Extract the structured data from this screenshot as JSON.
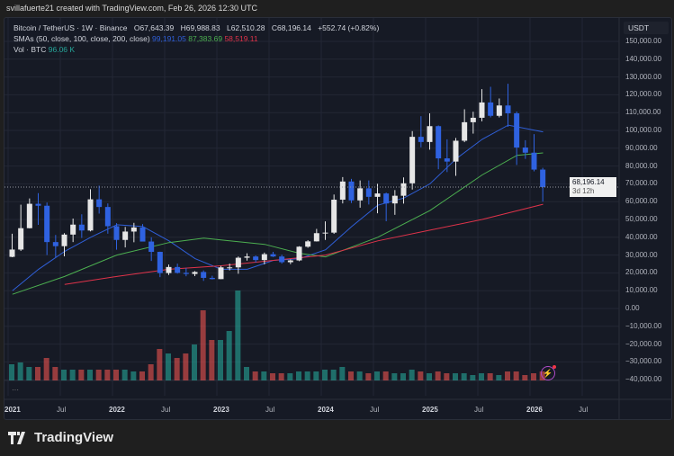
{
  "header": {
    "credit": "svillafuerte21 created with TradingView.com, Feb 26, 2026 12:30 UTC"
  },
  "legend": {
    "symbol": "Bitcoin / TetherUS · 1W · Binance",
    "open": "O67,643.39",
    "high": "H69,988.83",
    "low": "L62,510.28",
    "close": "C68,196.14",
    "change": "+552.74 (+0.82%)",
    "sma_label": "SMAs (50, close, 100, close, 200, close)",
    "sma50": "99,191.05",
    "sma100": "87,383.69",
    "sma200": "58,519.11",
    "vol_label": "Vol · BTC",
    "vol_value": "96.06 K"
  },
  "price_label": {
    "price": "68,196.14",
    "countdown": "3d 12h"
  },
  "pane_menu": "···",
  "footer": {
    "brand": "TradingView"
  },
  "colors": {
    "up": "#e6e6e6",
    "down": "#2f62e0",
    "sma50": "#2f5fd8",
    "sma100": "#4caf50",
    "sma200": "#e0334a",
    "vol_up": "#26a69a",
    "vol_down": "#ef5350",
    "background": "#161a25"
  },
  "icons": {
    "alert": "lightning-icon",
    "logo": "tradingview-logo"
  },
  "chart_data": {
    "type": "candlestick",
    "title": "Bitcoin / TetherUS · 1W · Binance",
    "unit": "USDT",
    "ylim": [
      -40000,
      150000
    ],
    "yticks": [
      "150,000.00",
      "140,000.00",
      "130,000.00",
      "120,000.00",
      "110,000.00",
      "100,000.00",
      "90,000.00",
      "80,000.00",
      "70,000.00",
      "60,000.00",
      "50,000.00",
      "40,000.00",
      "30,000.00",
      "20,000.00",
      "10,000.00",
      "0.00",
      "−10,000.00",
      "−20,000.00",
      "−30,000.00",
      "−40,000.00"
    ],
    "xticks": [
      {
        "label": "2021",
        "date": "2021-01",
        "year": true
      },
      {
        "label": "Jul",
        "date": "2021-07"
      },
      {
        "label": "2022",
        "date": "2022-01",
        "year": true
      },
      {
        "label": "Jul",
        "date": "2022-07"
      },
      {
        "label": "2023",
        "date": "2023-01",
        "year": true
      },
      {
        "label": "Jul",
        "date": "2023-07"
      },
      {
        "label": "2024",
        "date": "2024-01",
        "year": true
      },
      {
        "label": "Jul",
        "date": "2024-07"
      },
      {
        "label": "2025",
        "date": "2025-01",
        "year": true
      },
      {
        "label": "Jul",
        "date": "2025-07"
      },
      {
        "label": "2026",
        "date": "2026-01",
        "year": true
      },
      {
        "label": "Jul",
        "date": "2026-07"
      }
    ],
    "grid": true,
    "start": "2021-01",
    "ohlc_monthly_approx": [
      [
        29000,
        42000,
        28800,
        33100
      ],
      [
        33100,
        58300,
        32300,
        45100
      ],
      [
        45100,
        61800,
        45000,
        58800
      ],
      [
        58800,
        64800,
        47000,
        57700
      ],
      [
        57700,
        59500,
        30000,
        37300
      ],
      [
        37300,
        41300,
        28800,
        35000
      ],
      [
        35000,
        42300,
        29300,
        41500
      ],
      [
        41500,
        50500,
        37300,
        47100
      ],
      [
        47100,
        52900,
        39600,
        43800
      ],
      [
        43800,
        67000,
        43300,
        61300
      ],
      [
        61300,
        69000,
        53300,
        57000
      ],
      [
        57000,
        59000,
        42000,
        46200
      ],
      [
        46200,
        47900,
        33000,
        38500
      ],
      [
        38500,
        45800,
        34300,
        43200
      ],
      [
        43200,
        48100,
        37200,
        45500
      ],
      [
        45500,
        47400,
        37700,
        37600
      ],
      [
        37600,
        40000,
        26700,
        31800
      ],
      [
        31800,
        31900,
        17600,
        19900
      ],
      [
        19900,
        24700,
        18800,
        23300
      ],
      [
        23300,
        25200,
        19600,
        20000
      ],
      [
        20000,
        22800,
        18100,
        19400
      ],
      [
        19400,
        21000,
        18200,
        20500
      ],
      [
        20500,
        21400,
        15500,
        17200
      ],
      [
        17200,
        18400,
        16300,
        16500
      ],
      [
        16500,
        23900,
        16500,
        23100
      ],
      [
        23100,
        25200,
        21400,
        23100
      ],
      [
        23100,
        29200,
        19500,
        28500
      ],
      [
        28500,
        31000,
        26900,
        29200
      ],
      [
        29200,
        29800,
        25800,
        27200
      ],
      [
        27200,
        31400,
        24800,
        30500
      ],
      [
        30500,
        31800,
        28900,
        29200
      ],
      [
        29200,
        30200,
        25200,
        26000
      ],
      [
        26000,
        27500,
        24900,
        27000
      ],
      [
        27000,
        35000,
        26600,
        34700
      ],
      [
        34700,
        38400,
        34100,
        37700
      ],
      [
        37700,
        44700,
        37600,
        42300
      ],
      [
        42300,
        48900,
        38500,
        42600
      ],
      [
        42600,
        64000,
        41900,
        61100
      ],
      [
        61100,
        73800,
        59000,
        71300
      ],
      [
        71300,
        72800,
        59200,
        60700
      ],
      [
        60700,
        71900,
        56600,
        67500
      ],
      [
        67500,
        71900,
        58400,
        62700
      ],
      [
        62700,
        70000,
        53500,
        64600
      ],
      [
        64600,
        65100,
        49000,
        59000
      ],
      [
        59000,
        66500,
        52600,
        63300
      ],
      [
        63300,
        73600,
        58900,
        70300
      ],
      [
        70300,
        99600,
        66800,
        96400
      ],
      [
        96400,
        108000,
        90500,
        93500
      ],
      [
        93500,
        109600,
        89200,
        102400
      ],
      [
        102400,
        102800,
        78200,
        84300
      ],
      [
        84300,
        95000,
        76600,
        82500
      ],
      [
        82500,
        95800,
        74500,
        94200
      ],
      [
        94200,
        111900,
        93400,
        104600
      ],
      [
        104600,
        110500,
        98200,
        107100
      ],
      [
        107100,
        123200,
        105100,
        115700
      ],
      [
        115700,
        124500,
        107300,
        108200
      ],
      [
        108200,
        117900,
        107300,
        114000
      ],
      [
        114000,
        126200,
        102000,
        109600
      ],
      [
        109600,
        110600,
        80600,
        90400
      ],
      [
        90400,
        94500,
        84000,
        87500
      ],
      [
        87500,
        97900,
        77000,
        78000
      ],
      [
        78000,
        79000,
        60000,
        68196.14
      ]
    ],
    "sma": [
      {
        "name": "SMA 50",
        "color": "#2f5fd8",
        "points": [
          [
            "2021-01",
            10000
          ],
          [
            "2021-04",
            22000
          ],
          [
            "2021-07",
            32000
          ],
          [
            "2021-10",
            40000
          ],
          [
            "2022-01",
            47000
          ],
          [
            "2022-04",
            46000
          ],
          [
            "2022-07",
            38000
          ],
          [
            "2022-10",
            28000
          ],
          [
            "2023-01",
            22000
          ],
          [
            "2023-04",
            22000
          ],
          [
            "2023-07",
            27000
          ],
          [
            "2023-10",
            28000
          ],
          [
            "2024-01",
            33000
          ],
          [
            "2024-04",
            46000
          ],
          [
            "2024-07",
            58000
          ],
          [
            "2024-10",
            62000
          ],
          [
            "2025-01",
            70000
          ],
          [
            "2025-04",
            84000
          ],
          [
            "2025-07",
            95000
          ],
          [
            "2025-10",
            103000
          ],
          [
            "2026-02",
            99191.05
          ]
        ]
      },
      {
        "name": "SMA 100",
        "color": "#4caf50",
        "points": [
          [
            "2021-01",
            8000
          ],
          [
            "2021-07",
            18000
          ],
          [
            "2022-01",
            30000
          ],
          [
            "2022-07",
            37000
          ],
          [
            "2022-11",
            39500
          ],
          [
            "2023-06",
            36000
          ],
          [
            "2023-10",
            31000
          ],
          [
            "2024-01",
            29000
          ],
          [
            "2024-07",
            40000
          ],
          [
            "2025-01",
            55000
          ],
          [
            "2025-07",
            75000
          ],
          [
            "2025-11",
            86000
          ],
          [
            "2026-02",
            87383.69
          ]
        ]
      },
      {
        "name": "SMA 200",
        "color": "#e0334a",
        "points": [
          [
            "2021-07",
            13500
          ],
          [
            "2022-01",
            18000
          ],
          [
            "2022-07",
            22000
          ],
          [
            "2023-01",
            24000
          ],
          [
            "2023-07",
            27000
          ],
          [
            "2024-01",
            30000
          ],
          [
            "2024-07",
            38000
          ],
          [
            "2025-01",
            44000
          ],
          [
            "2025-07",
            50000
          ],
          [
            "2026-02",
            58519.11
          ]
        ]
      }
    ],
    "last_price": 68196.14,
    "volume_relative": [
      0.18,
      0.2,
      0.15,
      0.15,
      0.25,
      0.15,
      0.12,
      0.12,
      0.12,
      0.12,
      0.12,
      0.12,
      0.12,
      0.12,
      0.1,
      0.1,
      0.18,
      0.35,
      0.3,
      0.25,
      0.3,
      0.4,
      0.78,
      0.45,
      0.45,
      0.55,
      1.0,
      0.15,
      0.1,
      0.1,
      0.08,
      0.08,
      0.08,
      0.1,
      0.1,
      0.1,
      0.12,
      0.12,
      0.15,
      0.1,
      0.1,
      0.08,
      0.1,
      0.1,
      0.08,
      0.08,
      0.12,
      0.1,
      0.08,
      0.1,
      0.08,
      0.08,
      0.08,
      0.06,
      0.08,
      0.08,
      0.06,
      0.1,
      0.1,
      0.06,
      0.08,
      0.1
    ]
  }
}
